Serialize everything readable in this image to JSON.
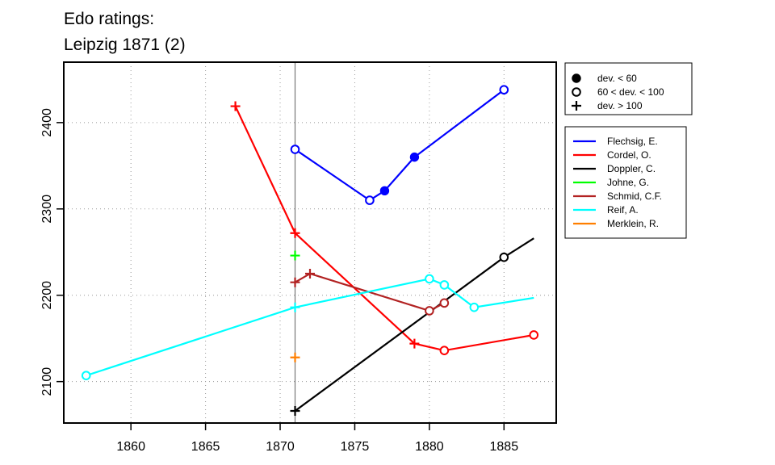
{
  "chart_data": {
    "type": "line",
    "title_line1": "Edo ratings:",
    "title_line2": "Leipzig 1871 (2)",
    "xlabel": "",
    "ylabel": "",
    "xlim": [
      1855.5,
      1888.5
    ],
    "ylim": [
      2052,
      2470
    ],
    "x_ticks": [
      1860,
      1865,
      1870,
      1875,
      1880,
      1885
    ],
    "y_ticks": [
      2100,
      2200,
      2300,
      2400
    ],
    "grid": true,
    "reference_line_x": 1871,
    "marker_legend": [
      {
        "symbol": "filled-circle",
        "label": "dev. < 60"
      },
      {
        "symbol": "open-circle",
        "label": "60 < dev. < 100"
      },
      {
        "symbol": "plus",
        "label": "dev. > 100"
      }
    ],
    "series": [
      {
        "name": "Flechsig, E.",
        "color": "#0000ff",
        "points": [
          {
            "x": 1871,
            "y": 2369,
            "m": "open"
          },
          {
            "x": 1876,
            "y": 2310,
            "m": "open"
          },
          {
            "x": 1877,
            "y": 2321,
            "m": "filled"
          },
          {
            "x": 1879,
            "y": 2360,
            "m": "filled"
          },
          {
            "x": 1885,
            "y": 2438,
            "m": "open"
          }
        ]
      },
      {
        "name": "Cordel, O.",
        "color": "#ff0000",
        "points": [
          {
            "x": 1867,
            "y": 2419,
            "m": "plus"
          },
          {
            "x": 1871,
            "y": 2272,
            "m": "plus"
          },
          {
            "x": 1879,
            "y": 2144,
            "m": "plus"
          },
          {
            "x": 1881,
            "y": 2136,
            "m": "open"
          },
          {
            "x": 1887,
            "y": 2154,
            "m": "open"
          }
        ]
      },
      {
        "name": "Doppler, C.",
        "color": "#000000",
        "points": [
          {
            "x": 1871,
            "y": 2066,
            "m": "plus"
          },
          {
            "x": 1885,
            "y": 2244,
            "m": "open"
          },
          {
            "x": 1887,
            "y": 2266,
            "m": "none"
          }
        ]
      },
      {
        "name": "Johne, G.",
        "color": "#00ff00",
        "points": [
          {
            "x": 1871,
            "y": 2246,
            "m": "plus"
          }
        ]
      },
      {
        "name": "Schmid, C.F.",
        "color": "#b22222",
        "points": [
          {
            "x": 1871,
            "y": 2215,
            "m": "plus"
          },
          {
            "x": 1872,
            "y": 2225,
            "m": "plus"
          },
          {
            "x": 1880,
            "y": 2182,
            "m": "open"
          },
          {
            "x": 1881,
            "y": 2191,
            "m": "open"
          }
        ]
      },
      {
        "name": "Reif, A.",
        "color": "#00ffff",
        "points": [
          {
            "x": 1857,
            "y": 2107,
            "m": "open"
          },
          {
            "x": 1871,
            "y": 2186,
            "m": "plus"
          },
          {
            "x": 1880,
            "y": 2219,
            "m": "open"
          },
          {
            "x": 1881,
            "y": 2212,
            "m": "open"
          },
          {
            "x": 1883,
            "y": 2186,
            "m": "open"
          },
          {
            "x": 1887,
            "y": 2197,
            "m": "none"
          }
        ]
      },
      {
        "name": "Merklein, R.",
        "color": "#ff7f00",
        "points": [
          {
            "x": 1871,
            "y": 2128,
            "m": "plus"
          }
        ]
      }
    ]
  }
}
